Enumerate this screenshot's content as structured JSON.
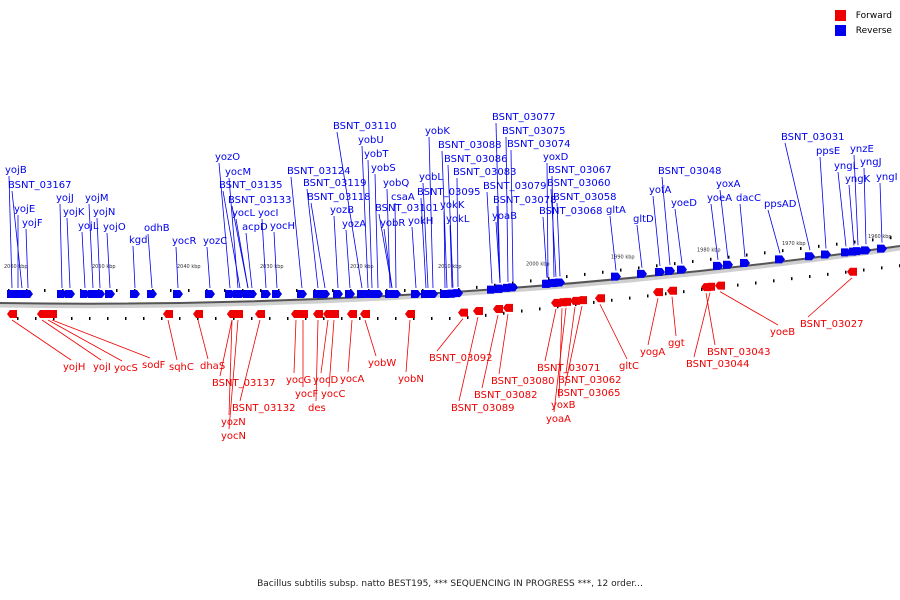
{
  "legend": [
    {
      "label": "Forward",
      "color": "#ee0000"
    },
    {
      "label": "Reverse",
      "color": "#0000ee"
    }
  ],
  "caption": "Bacillus subtilis subsp. natto BEST195, *** SEQUENCING IN PROGRESS ***, 12 order...",
  "colors": {
    "forward": "#ee0000",
    "reverse": "#0000ee",
    "backbone": "#555555"
  },
  "scale_ticks": [
    "2060 kbp",
    "2050 kbp",
    "2040 kbp",
    "2030 kbp",
    "2020 kbp",
    "2010 kbp",
    "2000 kbp",
    "1990 kbp",
    "1980 kbp",
    "1970 kbp",
    "1960 kbp"
  ],
  "reverse_genes": [
    "yojB",
    "BSNT_03167",
    "yojE",
    "yojF",
    "yojJ",
    "yojK",
    "yojL",
    "yojM",
    "yojN",
    "yojO",
    "kgd",
    "odhB",
    "yocR",
    "yozC",
    "yozO",
    "yocM",
    "BSNT_03135",
    "BSNT_03133",
    "yocL",
    "acpD",
    "yocI",
    "yocH",
    "BSNT_03124",
    "BSNT_03119",
    "BSNT_03118",
    "yozB",
    "yozA",
    "BSNT_03110",
    "yobU",
    "yobT",
    "yobS",
    "yobQ",
    "csaA",
    "BSNT_03101",
    "yobR",
    "yokH",
    "yobK",
    "yobL",
    "BSNT_03095",
    "yokK",
    "yokL",
    "BSNT_03088",
    "BSNT_03086",
    "BSNT_03083",
    "BSNT_03077",
    "BSNT_03075",
    "BSNT_03074",
    "yoxD",
    "BSNT_03079",
    "BSNT_03078",
    "yoaB",
    "BSNT_03067",
    "BSNT_03060",
    "BSNT_03058",
    "BSNT_03068",
    "gltA",
    "gltD",
    "yofA",
    "BSNT_03048",
    "yoeD",
    "yoxA",
    "yoeA",
    "dacC",
    "ppsAD",
    "BSNT_03031",
    "ppsE",
    "ynzE",
    "yngL",
    "yngJ",
    "yngK",
    "yngI"
  ],
  "forward_genes": [
    "yojH",
    "yojI",
    "yocS",
    "sodF",
    "sqhC",
    "dhaS",
    "BSNT_03137",
    "yozN",
    "yocN",
    "BSNT_03132",
    "yocG",
    "yocF",
    "des",
    "yocD",
    "yocC",
    "yocA",
    "yobW",
    "yobN",
    "BSNT_03092",
    "BSNT_03089",
    "BSNT_03082",
    "BSNT_03080",
    "BSNT_03071",
    "yoxB",
    "yoaA",
    "BSNT_03062",
    "BSNT_03065",
    "gltC",
    "yogA",
    "ggt",
    "BSNT_03043",
    "BSNT_03044",
    "yoeB",
    "BSNT_03027"
  ]
}
